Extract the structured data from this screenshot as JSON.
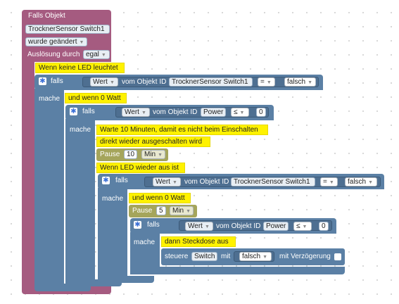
{
  "trigger": {
    "title": "Falls Objekt",
    "object_id": "TrocknerSensor  Switch1",
    "change_mode": "wurde geändert",
    "trigger_label": "Auslösung durch",
    "trigger_value": "egal"
  },
  "comments": {
    "c1": "Wenn keine LED leuchtet",
    "c2": "und wenn 0 Watt",
    "c3": "Warte 10 Minuten, damit es nicht beim Einschalten",
    "c4": "direkt wieder ausgeschalten wird",
    "c5": "Wenn LED wieder aus ist",
    "c6": "und wenn 0 Watt",
    "c7": "dann Steckdose aus"
  },
  "labels": {
    "falls": "falls",
    "mache": "mache",
    "wert": "Wert",
    "vom_objekt_id": "vom Objekt ID",
    "pause": "Pause",
    "steuere": "steuere",
    "mit": "mit",
    "mit_verzoegerung": "mit Verzögerung"
  },
  "if1": {
    "object_id": "TrocknerSensor  Switch1",
    "operator": "=",
    "value": "falsch"
  },
  "if2": {
    "object_id": "Power",
    "operator": "≤",
    "number": "0"
  },
  "pause1": {
    "amount": "10",
    "unit": "Min"
  },
  "if3": {
    "object_id": "TrocknerSensor  Switch1",
    "operator": "=",
    "value": "falsch"
  },
  "pause2": {
    "amount": "5",
    "unit": "Min"
  },
  "if4": {
    "object_id": "Power",
    "operator": "≤",
    "number": "0"
  },
  "control": {
    "object_id": "Switch",
    "value": "falsch"
  },
  "colors": {
    "event_block": "#a55b80",
    "logic_block": "#5b80a5",
    "pause_block": "#a5a55b",
    "comment": "#fff200"
  }
}
